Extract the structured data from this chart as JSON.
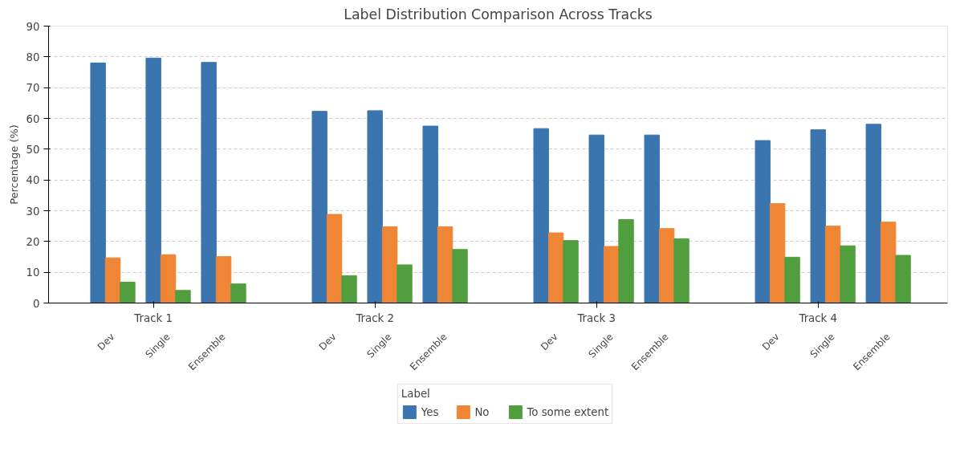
{
  "chart_data": {
    "type": "bar",
    "title": "Label Distribution Comparison Across Tracks",
    "ylabel": "Percentage (%)",
    "categories": [
      "Dev",
      "Single",
      "Ensemble",
      "Dev",
      "Single",
      "Ensemble",
      "Dev",
      "Single",
      "Ensemble",
      "Dev",
      "Single",
      "Ensemble"
    ],
    "annotations": [
      "Track 1",
      "Track 2",
      "Track 3",
      "Track 4"
    ],
    "series": [
      {
        "name": "Yes",
        "color": "#3b75af",
        "values": [
          78.0,
          79.6,
          78.2,
          62.3,
          62.5,
          57.5,
          56.7,
          54.6,
          54.6,
          52.8,
          56.3,
          58.1
        ]
      },
      {
        "name": "No",
        "color": "#ef8636",
        "values": [
          14.7,
          15.7,
          15.1,
          28.8,
          24.8,
          24.8,
          22.8,
          18.4,
          24.2,
          32.3,
          25.0,
          26.3
        ]
      },
      {
        "name": "To some extent",
        "color": "#519e3e",
        "values": [
          6.8,
          4.1,
          6.2,
          8.9,
          12.4,
          17.4,
          20.3,
          27.1,
          20.9,
          14.9,
          18.6,
          15.5
        ]
      }
    ],
    "ylim": [
      0,
      90
    ],
    "yticks": [
      0,
      10,
      20,
      30,
      40,
      50,
      60,
      70,
      80,
      90
    ],
    "grid": "y",
    "legend": "bottom",
    "legend_title": "Label"
  }
}
